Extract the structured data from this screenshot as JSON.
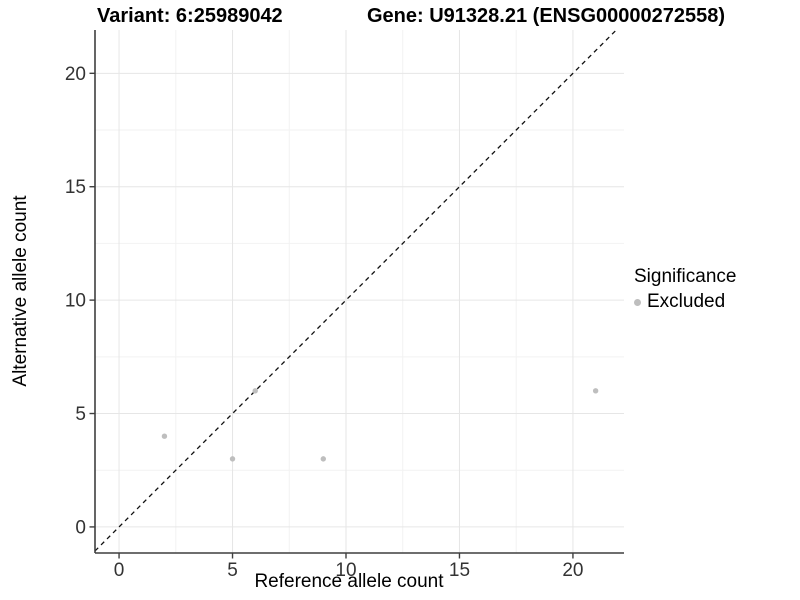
{
  "header": {
    "variant_title": "Variant: 6:25989042",
    "gene_title": "Gene: U91328.21 (ENSG00000272558)"
  },
  "legend": {
    "title": "Significance",
    "items": [
      {
        "label": "Excluded",
        "color": "#bebebe"
      }
    ]
  },
  "chart_data": {
    "type": "scatter",
    "xlabel": "Reference allele count",
    "ylabel": "Alternative allele count",
    "x_ticks": [
      0,
      5,
      10,
      15,
      20
    ],
    "y_ticks": [
      0,
      5,
      10,
      15,
      20
    ],
    "xlim": [
      -1.06,
      22.25
    ],
    "ylim": [
      -1.15,
      21.91
    ],
    "grid": {
      "major": true,
      "minor": true
    },
    "legend_position": "right",
    "series": [
      {
        "name": "Excluded",
        "color": "#bebebe",
        "points": [
          [
            2,
            4
          ],
          [
            5,
            3
          ],
          [
            6,
            6
          ],
          [
            9,
            3
          ],
          [
            21,
            6
          ]
        ]
      }
    ],
    "reference_line": {
      "slope": 1,
      "intercept": 0,
      "style": "dashed",
      "color": "#111111"
    }
  },
  "style": {
    "grid_major_color": "#e6e6e6",
    "grid_minor_color": "#f2f2f2",
    "axis_line_color": "#3f3f3f",
    "tick_label_color": "#333333",
    "point_radius": 2.7
  }
}
